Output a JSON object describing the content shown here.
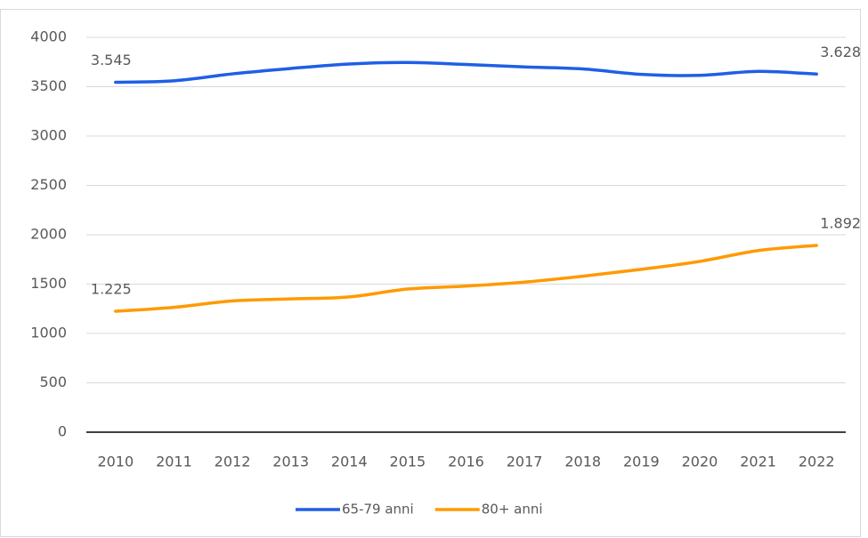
{
  "chart_data": {
    "type": "line",
    "categories": [
      "2010",
      "2011",
      "2012",
      "2013",
      "2014",
      "2015",
      "2016",
      "2017",
      "2018",
      "2019",
      "2020",
      "2021",
      "2022"
    ],
    "series": [
      {
        "name": "65-79 anni",
        "color": "#1f5fe6",
        "values": [
          3545,
          3560,
          3630,
          3685,
          3730,
          3745,
          3725,
          3700,
          3680,
          3625,
          3615,
          3655,
          3628
        ],
        "value_labels": [
          "3.545",
          null,
          null,
          null,
          null,
          null,
          null,
          null,
          null,
          null,
          null,
          null,
          "3.628"
        ]
      },
      {
        "name": "80+ anni",
        "color": "#ff9a00",
        "values": [
          1225,
          1265,
          1330,
          1350,
          1370,
          1450,
          1480,
          1520,
          1580,
          1650,
          1730,
          1840,
          1892
        ],
        "value_labels": [
          "1.225",
          null,
          null,
          null,
          null,
          null,
          null,
          null,
          null,
          null,
          null,
          null,
          "1.892"
        ]
      }
    ],
    "ylim": [
      0,
      4000
    ],
    "yticks": [
      0,
      500,
      1000,
      1500,
      2000,
      2500,
      3000,
      3500,
      4000
    ],
    "grid": true,
    "legend": "bottom"
  }
}
